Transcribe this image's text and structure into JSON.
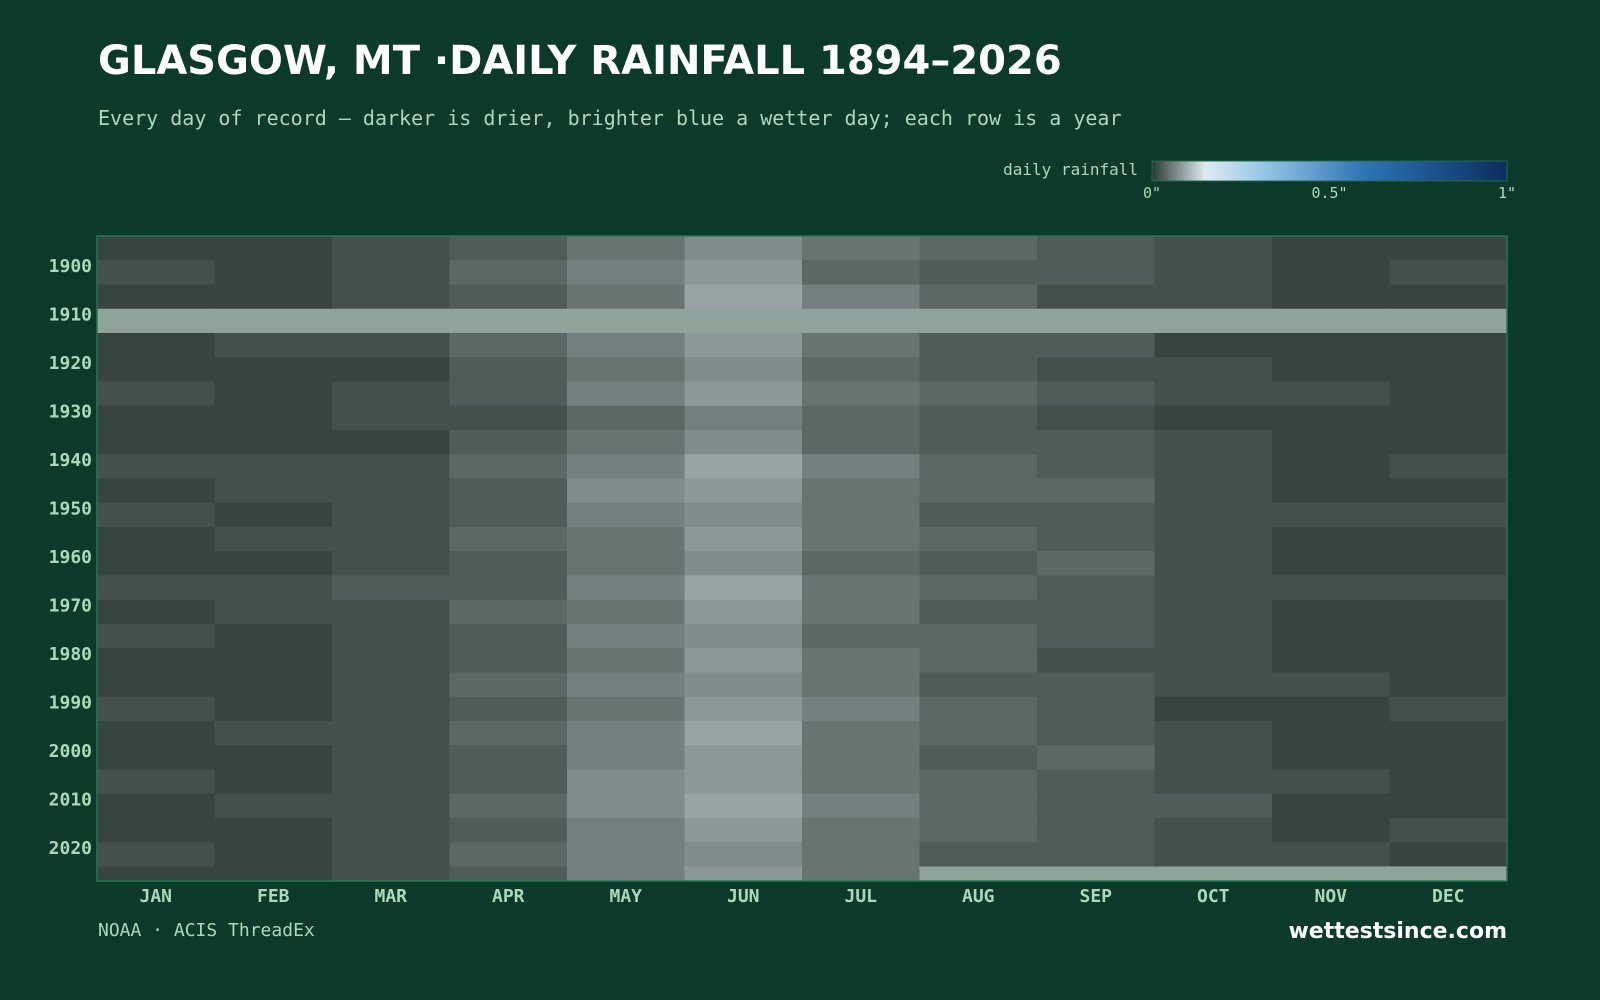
{
  "chart_data": {
    "type": "heatmap",
    "title": "GLASGOW, MT ·DAILY RAINFALL 1894–2026",
    "subtitle": "Every day of record — darker is drier, brighter blue a wetter day; each row is a year",
    "categories": [
      "JAN",
      "FEB",
      "MAR",
      "APR",
      "MAY",
      "JUN",
      "JUL",
      "AUG",
      "SEP",
      "OCT",
      "NOV",
      "DEC"
    ],
    "y_edges": [
      1894,
      1899,
      1904,
      1909,
      1914,
      1919,
      1924,
      1929,
      1934,
      1939,
      1944,
      1949,
      1954,
      1959,
      1964,
      1969,
      1974,
      1979,
      1984,
      1989,
      1994,
      1999,
      2004,
      2009,
      2014,
      2019,
      2024,
      2027
    ],
    "ylim": [
      1894,
      2027
    ],
    "yticks": [
      1900,
      1910,
      1920,
      1930,
      1940,
      1950,
      1960,
      1970,
      1980,
      1990,
      2000,
      2010,
      2020
    ],
    "values": [
      [
        0.01,
        0.01,
        0.02,
        0.03,
        0.05,
        0.07,
        0.05,
        0.04,
        0.03,
        0.02,
        0.01,
        0.01
      ],
      [
        0.02,
        0.01,
        0.02,
        0.04,
        0.06,
        0.08,
        0.04,
        0.03,
        0.03,
        0.02,
        0.01,
        0.02
      ],
      [
        0.01,
        0.01,
        0.02,
        0.03,
        0.05,
        0.09,
        0.06,
        0.04,
        0.02,
        0.02,
        0.01,
        0.01
      ],
      [
        null,
        null,
        null,
        null,
        null,
        null,
        null,
        null,
        null,
        null,
        null,
        null
      ],
      [
        0.01,
        0.02,
        0.02,
        0.04,
        0.06,
        0.08,
        0.05,
        0.03,
        0.03,
        0.01,
        0.01,
        0.01
      ],
      [
        0.01,
        0.01,
        0.01,
        0.03,
        0.05,
        0.07,
        0.04,
        0.03,
        0.02,
        0.02,
        0.01,
        0.01
      ],
      [
        0.02,
        0.01,
        0.02,
        0.03,
        0.06,
        0.08,
        0.05,
        0.04,
        0.03,
        0.02,
        0.02,
        0.01
      ],
      [
        0.01,
        0.01,
        0.02,
        0.02,
        0.04,
        0.06,
        0.04,
        0.03,
        0.02,
        0.01,
        0.01,
        0.01
      ],
      [
        0.01,
        0.01,
        0.01,
        0.03,
        0.05,
        0.07,
        0.04,
        0.03,
        0.03,
        0.02,
        0.01,
        0.01
      ],
      [
        0.02,
        0.02,
        0.02,
        0.04,
        0.06,
        0.09,
        0.06,
        0.04,
        0.03,
        0.02,
        0.01,
        0.02
      ],
      [
        0.01,
        0.02,
        0.02,
        0.03,
        0.07,
        0.08,
        0.05,
        0.04,
        0.04,
        0.02,
        0.01,
        0.01
      ],
      [
        0.02,
        0.01,
        0.02,
        0.03,
        0.06,
        0.07,
        0.05,
        0.03,
        0.03,
        0.02,
        0.02,
        0.02
      ],
      [
        0.01,
        0.02,
        0.02,
        0.04,
        0.05,
        0.08,
        0.05,
        0.04,
        0.03,
        0.02,
        0.01,
        0.01
      ],
      [
        0.01,
        0.01,
        0.02,
        0.03,
        0.05,
        0.07,
        0.04,
        0.03,
        0.04,
        0.02,
        0.01,
        0.01
      ],
      [
        0.02,
        0.02,
        0.03,
        0.03,
        0.06,
        0.09,
        0.05,
        0.04,
        0.03,
        0.02,
        0.02,
        0.02
      ],
      [
        0.01,
        0.02,
        0.02,
        0.04,
        0.05,
        0.08,
        0.05,
        0.03,
        0.03,
        0.02,
        0.01,
        0.01
      ],
      [
        0.02,
        0.01,
        0.02,
        0.03,
        0.06,
        0.07,
        0.04,
        0.04,
        0.03,
        0.02,
        0.01,
        0.01
      ],
      [
        0.01,
        0.01,
        0.02,
        0.03,
        0.05,
        0.08,
        0.05,
        0.04,
        0.02,
        0.02,
        0.01,
        0.01
      ],
      [
        0.01,
        0.01,
        0.02,
        0.04,
        0.06,
        0.07,
        0.05,
        0.03,
        0.03,
        0.02,
        0.02,
        0.01
      ],
      [
        0.02,
        0.01,
        0.02,
        0.03,
        0.05,
        0.08,
        0.06,
        0.04,
        0.03,
        0.01,
        0.01,
        0.02
      ],
      [
        0.01,
        0.02,
        0.02,
        0.04,
        0.06,
        0.09,
        0.05,
        0.04,
        0.03,
        0.02,
        0.01,
        0.01
      ],
      [
        0.01,
        0.01,
        0.02,
        0.03,
        0.06,
        0.08,
        0.05,
        0.03,
        0.04,
        0.02,
        0.01,
        0.01
      ],
      [
        0.02,
        0.01,
        0.02,
        0.03,
        0.07,
        0.08,
        0.05,
        0.04,
        0.03,
        0.02,
        0.02,
        0.01
      ],
      [
        0.01,
        0.02,
        0.02,
        0.04,
        0.07,
        0.09,
        0.06,
        0.04,
        0.03,
        0.03,
        0.01,
        0.01
      ],
      [
        0.01,
        0.01,
        0.02,
        0.03,
        0.06,
        0.08,
        0.05,
        0.04,
        0.03,
        0.02,
        0.01,
        0.02
      ],
      [
        0.02,
        0.01,
        0.02,
        0.04,
        0.06,
        0.07,
        0.05,
        0.03,
        0.03,
        0.02,
        0.02,
        0.01
      ],
      [
        0.01,
        0.01,
        0.02,
        0.03,
        0.06,
        0.08,
        0.05,
        null,
        null,
        null,
        null,
        null
      ]
    ],
    "missing_color": "#8fa39a",
    "colorbar": {
      "label": "daily rainfall",
      "lim": [
        0,
        1
      ],
      "stops": [
        [
          0,
          "#2b3833"
        ],
        [
          0.15,
          "#e0ebf1"
        ],
        [
          0.3,
          "#9ccae8"
        ],
        [
          0.6,
          "#2c74b5"
        ],
        [
          1,
          "#0b2d5e"
        ]
      ],
      "ticks": [
        {
          "value": 0,
          "label": "0\""
        },
        {
          "value": 0.5,
          "label": "0.5\""
        },
        {
          "value": 1,
          "label": "1\""
        }
      ]
    },
    "source": "NOAA · ACIS ThreadEx",
    "brand": "wettestsince.com"
  }
}
